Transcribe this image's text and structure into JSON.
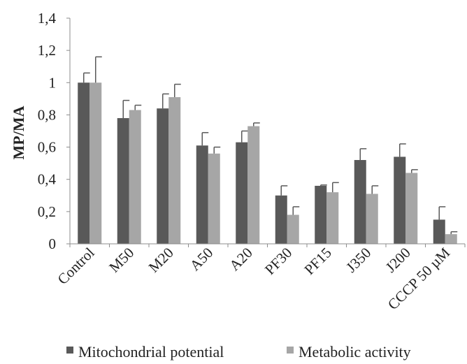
{
  "chart_data": {
    "type": "bar",
    "title": "",
    "xlabel": "",
    "ylabel": "MP/MA",
    "ylim": [
      0,
      1.4
    ],
    "yticks": [
      "0",
      "0,2",
      "0,4",
      "0,6",
      "0,8",
      "1",
      "1,2",
      "1,4"
    ],
    "ytick_values": [
      0,
      0.2,
      0.4,
      0.6,
      0.8,
      1.0,
      1.2,
      1.4
    ],
    "grid": false,
    "legend_position": "bottom",
    "categories": [
      "Control",
      "M50",
      "M20",
      "A50",
      "A20",
      "PF30",
      "PF15",
      "J350",
      "J200",
      "CCCP 50 µM"
    ],
    "series": [
      {
        "name": "Mitochondrial potential",
        "color": "#595959",
        "values": [
          1.0,
          0.78,
          0.84,
          0.61,
          0.63,
          0.3,
          0.36,
          0.52,
          0.54,
          0.15
        ],
        "errors": [
          0.06,
          0.11,
          0.09,
          0.08,
          0.07,
          0.06,
          0.005,
          0.07,
          0.08,
          0.08
        ]
      },
      {
        "name": "Metabolic activity",
        "color": "#a6a6a6",
        "values": [
          1.0,
          0.83,
          0.91,
          0.56,
          0.73,
          0.18,
          0.32,
          0.31,
          0.44,
          0.06
        ],
        "errors": [
          0.16,
          0.03,
          0.08,
          0.04,
          0.02,
          0.05,
          0.06,
          0.05,
          0.02,
          0.015
        ]
      }
    ]
  }
}
